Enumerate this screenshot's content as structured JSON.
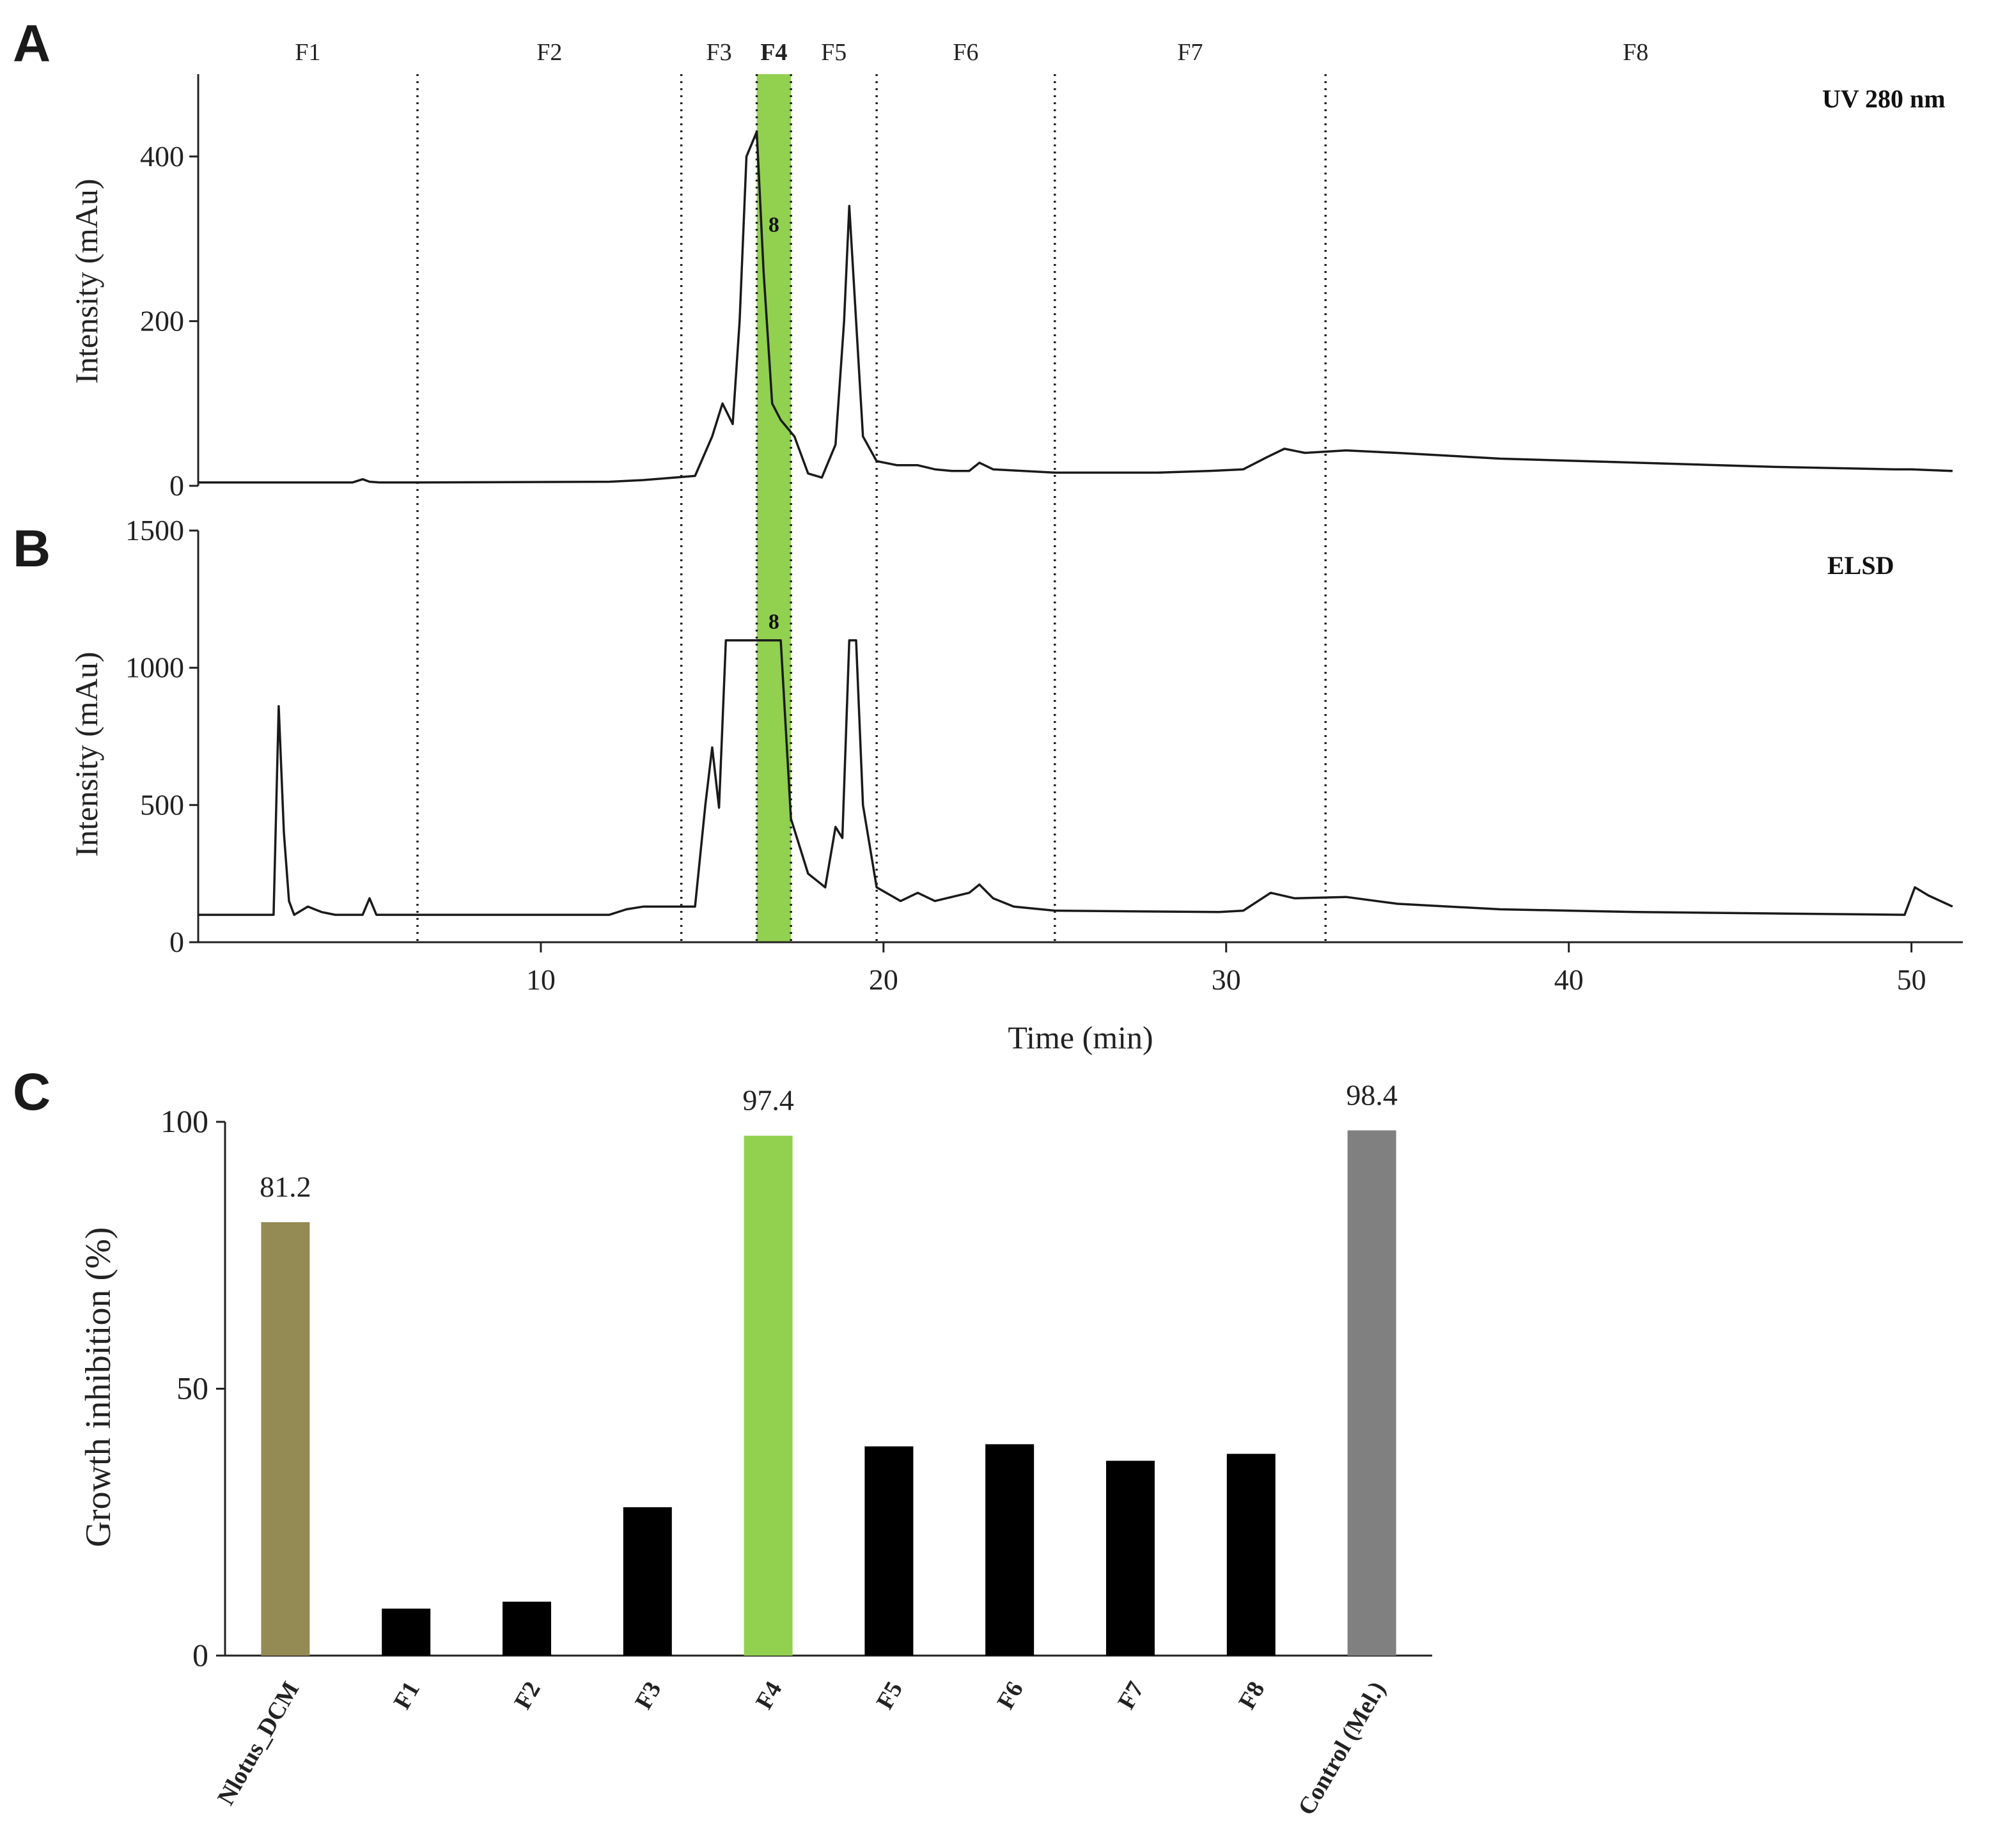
{
  "panels": {
    "a": {
      "letter": "A",
      "detector_label": "UV 280 nm",
      "ylabel": "Intensity (mAu)"
    },
    "b": {
      "letter": "B",
      "detector_label": "ELSD",
      "ylabel": "Intensity (mAu)"
    },
    "c": {
      "letter": "C"
    }
  },
  "peak_label": "8",
  "colors": {
    "highlight": "#92d050",
    "extract_bar": "#948a54",
    "control_bar": "#808080",
    "fraction_bar": "#000000",
    "trace": "#1a1a1a"
  },
  "chart_data": [
    {
      "type": "line",
      "panel": "A",
      "title": "UV 280 nm",
      "xlabel": "",
      "ylabel": "Intensity (mAu)",
      "xlim": [
        0,
        51.5
      ],
      "ylim": [
        0,
        500
      ],
      "yticks": [
        0,
        200,
        400
      ],
      "fraction_boundaries": [
        6.4,
        14.1,
        16.3,
        17.3,
        19.8,
        25.0,
        32.9
      ],
      "fractions": [
        {
          "name": "F1",
          "start": 0,
          "end": 6.4
        },
        {
          "name": "F2",
          "start": 6.4,
          "end": 14.1
        },
        {
          "name": "F3",
          "start": 14.1,
          "end": 16.3
        },
        {
          "name": "F4",
          "start": 16.3,
          "end": 17.3,
          "highlight": true
        },
        {
          "name": "F5",
          "start": 17.3,
          "end": 19.8
        },
        {
          "name": "F6",
          "start": 19.8,
          "end": 25.0
        },
        {
          "name": "F7",
          "start": 25.0,
          "end": 32.9
        },
        {
          "name": "F8",
          "start": 32.9,
          "end": 51.5
        }
      ],
      "annotations": [
        {
          "text": "8",
          "x": 16.8,
          "y": 318
        }
      ],
      "series": [
        {
          "name": "UV 280 nm",
          "x": [
            0,
            4.5,
            4.8,
            5.0,
            5.3,
            6.4,
            12,
            13,
            14.5,
            15.0,
            15.3,
            15.6,
            15.8,
            16.0,
            16.3,
            16.5,
            16.75,
            17.0,
            17.4,
            17.8,
            18.2,
            18.6,
            18.85,
            19.0,
            19.4,
            19.8,
            20.4,
            20.6,
            21.0,
            21.5,
            22.0,
            22.5,
            22.8,
            23.2,
            25.0,
            26,
            28,
            29.5,
            30.5,
            31.2,
            31.7,
            32.3,
            33.5,
            35,
            38,
            42,
            46,
            49.5,
            50,
            51.2
          ],
          "y": [
            4,
            4,
            8,
            5,
            4,
            4,
            5,
            7,
            12,
            60,
            100,
            75,
            200,
            400,
            430,
            260,
            100,
            80,
            60,
            15,
            10,
            50,
            200,
            340,
            60,
            30,
            25,
            25,
            25,
            20,
            18,
            18,
            28,
            20,
            16,
            16,
            16,
            18,
            20,
            35,
            45,
            40,
            43,
            40,
            33,
            28,
            23,
            20,
            20,
            18
          ]
        }
      ]
    },
    {
      "type": "line",
      "panel": "B",
      "title": "ELSD",
      "xlabel": "Time (min)",
      "ylabel": "Intensity (mAu)",
      "xlim": [
        0,
        51.5
      ],
      "ylim": [
        0,
        1500
      ],
      "yticks": [
        0,
        500,
        1000,
        1500
      ],
      "xticks": [
        10,
        20,
        30,
        40,
        50
      ],
      "annotations": [
        {
          "text": "8",
          "x": 16.8,
          "y": 1170
        }
      ],
      "series": [
        {
          "name": "ELSD",
          "x": [
            0,
            2.2,
            2.35,
            2.5,
            2.65,
            2.8,
            3.2,
            3.6,
            4.0,
            4.8,
            5.0,
            5.2,
            6.4,
            12.0,
            12.5,
            13.0,
            14.5,
            14.8,
            15.0,
            15.2,
            15.4,
            15.6,
            16.0,
            16.5,
            17.0,
            17.3,
            17.8,
            18.3,
            18.6,
            18.8,
            19.0,
            19.2,
            19.4,
            19.8,
            20.5,
            21.0,
            21.5,
            22.5,
            22.8,
            23.2,
            23.8,
            25.0,
            29.8,
            30.5,
            31.3,
            32.0,
            33.5,
            35,
            38,
            40,
            42,
            49.8,
            50.1,
            50.5,
            51.2
          ],
          "y": [
            100,
            100,
            860,
            400,
            150,
            100,
            130,
            110,
            100,
            100,
            160,
            100,
            100,
            100,
            120,
            130,
            130,
            500,
            710,
            490,
            1100,
            1100,
            1100,
            1100,
            1100,
            450,
            250,
            200,
            420,
            380,
            1100,
            1100,
            500,
            200,
            150,
            180,
            150,
            180,
            210,
            160,
            130,
            115,
            110,
            115,
            180,
            160,
            165,
            140,
            120,
            115,
            110,
            100,
            200,
            170,
            130
          ]
        }
      ]
    },
    {
      "type": "bar",
      "panel": "C",
      "title": "",
      "xlabel": "",
      "ylabel": "Growth inhibition (%)",
      "ylim": [
        0,
        100
      ],
      "yticks": [
        0,
        50,
        100
      ],
      "categories": [
        "Nlotus_DCM",
        "F1",
        "F2",
        "F3",
        "F4",
        "F5",
        "F6",
        "F7",
        "F8",
        "Control (Mel.)"
      ],
      "values": [
        81.2,
        8.8,
        10.1,
        27.8,
        97.4,
        39.2,
        39.6,
        36.5,
        37.8,
        98.4
      ],
      "data_labels": [
        {
          "index": 0,
          "text": "81.2"
        },
        {
          "index": 4,
          "text": "97.4"
        },
        {
          "index": 9,
          "text": "98.4"
        }
      ],
      "bar_colors": [
        "#948a54",
        "#000000",
        "#000000",
        "#000000",
        "#92d050",
        "#000000",
        "#000000",
        "#000000",
        "#000000",
        "#808080"
      ]
    }
  ]
}
